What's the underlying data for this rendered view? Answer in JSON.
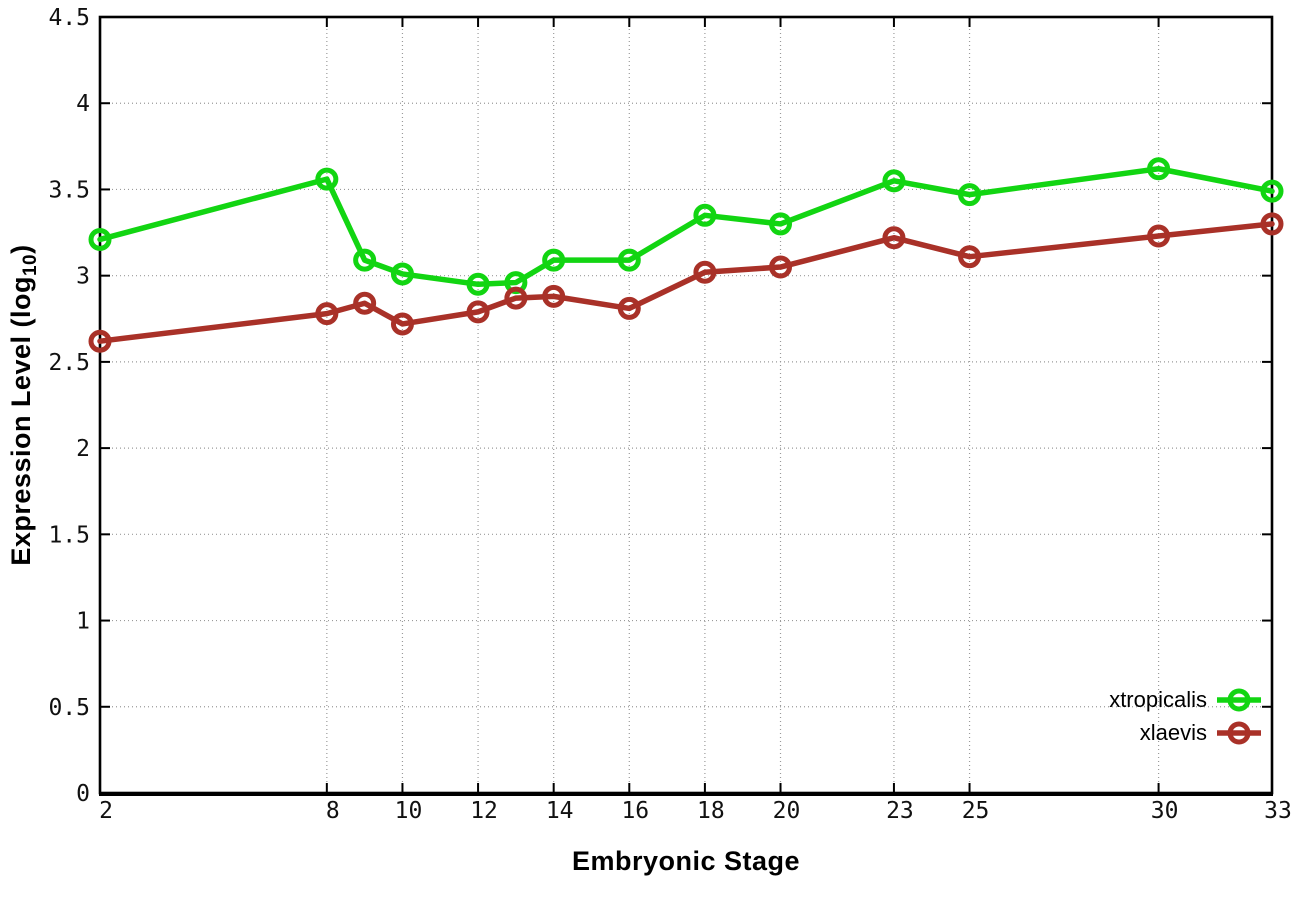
{
  "chart_data": {
    "type": "line",
    "x": [
      2,
      8,
      9,
      10,
      12,
      13,
      14,
      16,
      18,
      20,
      23,
      25,
      30,
      33
    ],
    "series": [
      {
        "name": "xtropicalis",
        "color": "#12d512",
        "values": [
          3.21,
          3.56,
          3.09,
          3.01,
          2.95,
          2.96,
          3.09,
          3.09,
          3.35,
          3.3,
          3.55,
          3.47,
          3.62,
          3.49
        ]
      },
      {
        "name": "xlaevis",
        "color": "#a93128",
        "values": [
          2.62,
          2.78,
          2.84,
          2.72,
          2.79,
          2.87,
          2.88,
          2.81,
          3.02,
          3.05,
          3.22,
          3.11,
          3.23,
          3.3
        ]
      }
    ],
    "xlabel": "Embryonic Stage",
    "ylabel_prefix": "Expression Level (log",
    "ylabel_sub": "10",
    "ylabel_suffix": ")",
    "xlim": [
      2,
      33
    ],
    "ylim": [
      0,
      4.5
    ],
    "xticks": [
      2,
      8,
      10,
      12,
      14,
      16,
      18,
      20,
      23,
      25,
      30,
      33
    ],
    "yticks": [
      0,
      0.5,
      1,
      1.5,
      2,
      2.5,
      3,
      3.5,
      4,
      4.5
    ],
    "grid": true,
    "grid_style": "dotted",
    "legend_position": "bottom-right",
    "marker": "open-circle",
    "background_color": "#ffffff",
    "grid_color": "#9a9a9a",
    "border_color": "#000000",
    "text_color": "#000000"
  }
}
